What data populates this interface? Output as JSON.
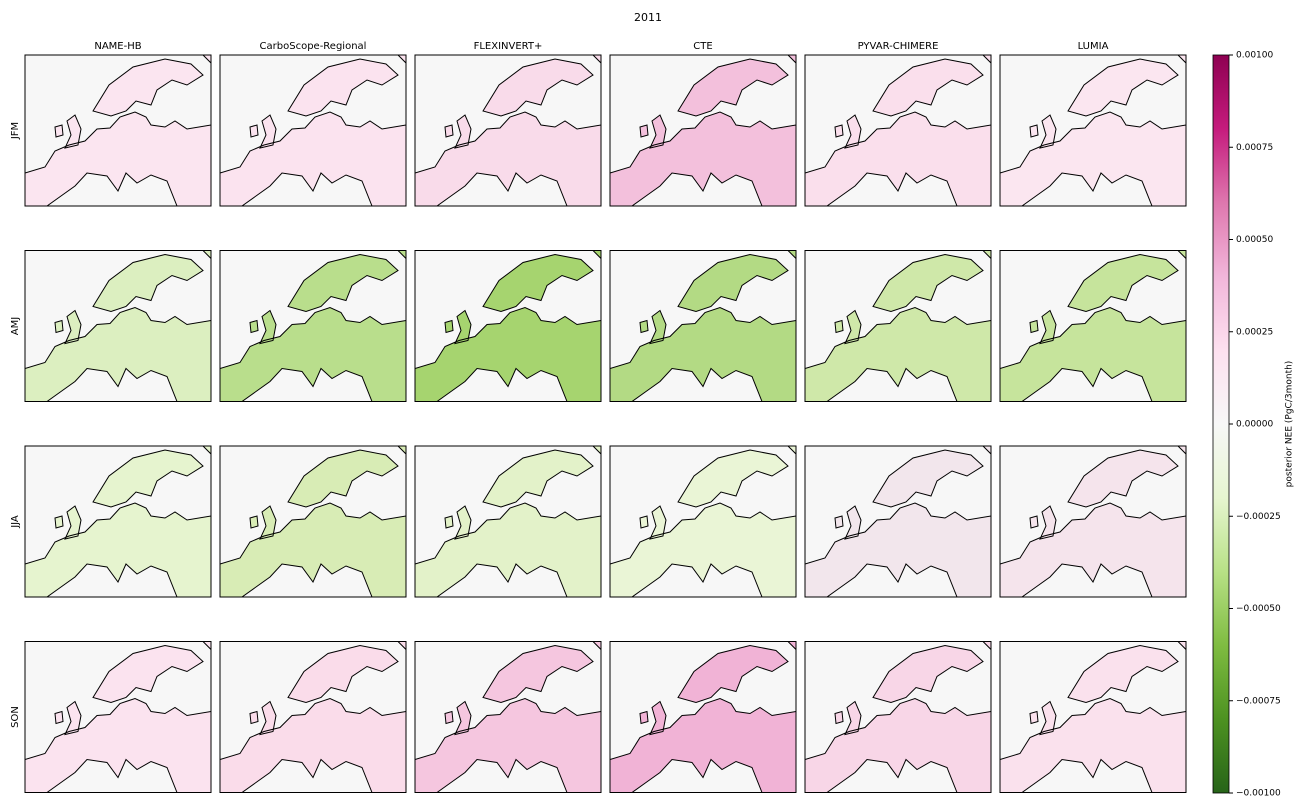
{
  "chart_data": {
    "type": "map-grid",
    "title": "2011",
    "columns": [
      "NAME-HB",
      "CarboScope-Regional",
      "FLEXINVERT+",
      "CTE",
      "PYVAR-CHIMERE",
      "LUMIA"
    ],
    "rows": [
      "JFM",
      "AMJ",
      "JJA",
      "SON"
    ],
    "panel_colors": [
      [
        "#fbe5f0",
        "#fbe3ef",
        "#f9dbea",
        "#f3c0dc",
        "#fadfec",
        "#fbe6f0"
      ],
      [
        "#dcefc0",
        "#b9de8c",
        "#a6d46f",
        "#b3da84",
        "#cfe8a9",
        "#c6e49c"
      ],
      [
        "#e6f4cf",
        "#d8ecb5",
        "#e3f2c9",
        "#eaf5d6",
        "#f2e6ec",
        "#f5e4ec"
      ],
      [
        "#fbe3ef",
        "#fadcea",
        "#f5c6df",
        "#f1b3d6",
        "#f8d6e7",
        "#fae1ed"
      ]
    ],
    "colorbar": {
      "label": "posterior NEE (PgC/3month)",
      "colors": [
        "#276419",
        "#4d9221",
        "#7fbc41",
        "#b8e186",
        "#e6f5d0",
        "#f7f7f7",
        "#fde0ef",
        "#f1b6da",
        "#de77ae",
        "#c51b7d",
        "#8e0152"
      ],
      "ylim": [
        -0.001,
        0.001
      ],
      "yticks": [
        {
          "value": -0.001,
          "label": "−0.00100"
        },
        {
          "value": -0.00075,
          "label": "−0.00075"
        },
        {
          "value": -0.0005,
          "label": "−0.00050"
        },
        {
          "value": -0.00025,
          "label": "−0.00025"
        },
        {
          "value": 0,
          "label": "0.00000"
        },
        {
          "value": 0.00025,
          "label": "0.00025"
        },
        {
          "value": 0.0005,
          "label": "0.00050"
        },
        {
          "value": 0.00075,
          "label": "0.00075"
        },
        {
          "value": 0.001,
          "label": "0.00100"
        }
      ]
    }
  }
}
